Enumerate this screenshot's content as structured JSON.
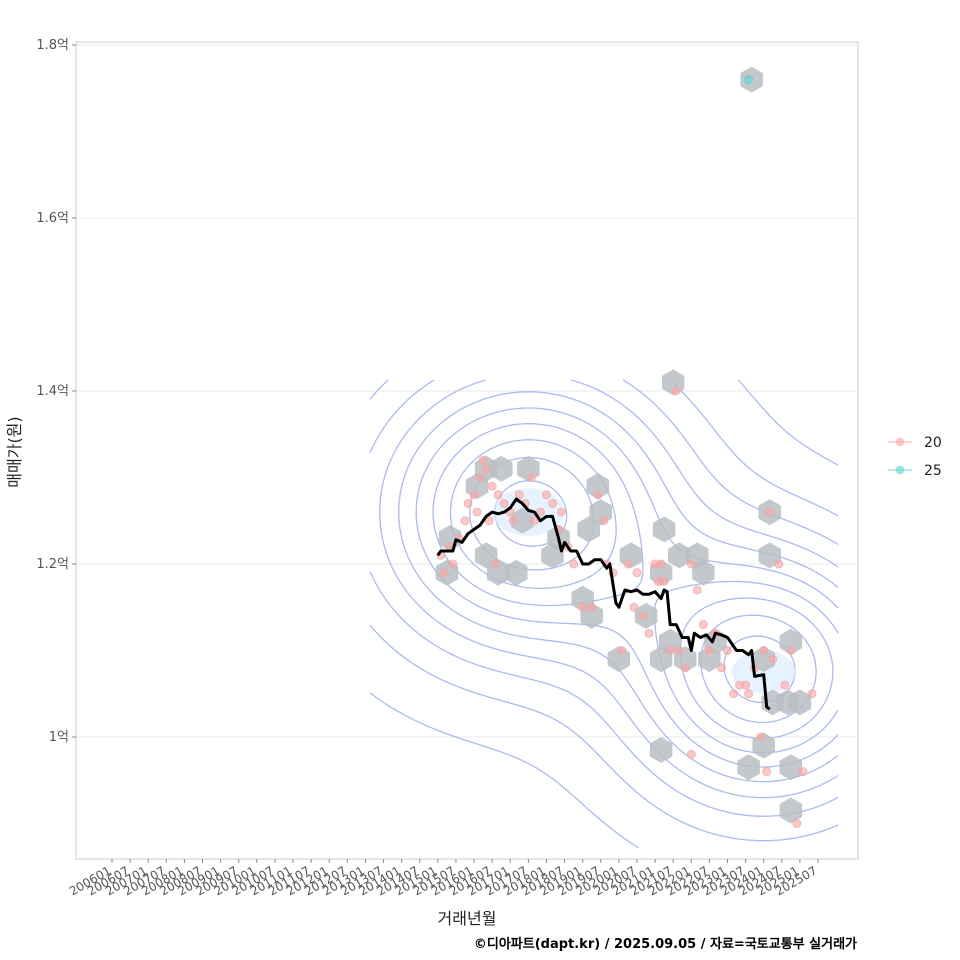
{
  "chart_data": {
    "type": "scatter",
    "title": "",
    "xlabel": "거래년월",
    "ylabel": "매매가(원)",
    "caption": "©디아파트(dapt.kr) / 2025.09.05 / 자료=국토교통부 실거래가",
    "x_ticks": [
      "200601",
      "200607",
      "200701",
      "200707",
      "200801",
      "200807",
      "200901",
      "200907",
      "201001",
      "201007",
      "201101",
      "201107",
      "201201",
      "201207",
      "201301",
      "201307",
      "201401",
      "201407",
      "201501",
      "201507",
      "201601",
      "201607",
      "201701",
      "201707",
      "201801",
      "201807",
      "201901",
      "201907",
      "202001",
      "202007",
      "202101",
      "202107",
      "202201",
      "202207",
      "202301",
      "202307",
      "202401",
      "202407",
      "202501",
      "202507"
    ],
    "y_ticks": [
      {
        "value": 1.0,
        "label": "1억"
      },
      {
        "value": 1.2,
        "label": "1.2억"
      },
      {
        "value": 1.4,
        "label": "1.4억"
      },
      {
        "value": 1.6,
        "label": "1.6억"
      },
      {
        "value": 1.8,
        "label": "1.8억"
      }
    ],
    "x_range": [
      "2006-01",
      "2025-12"
    ],
    "y_range_eok": [
      0.865,
      1.81
    ],
    "grid": true,
    "legend_position": "right",
    "colors": {
      "s20": "#f8a5a5",
      "s25": "#5fd3d3",
      "hex": "#b8bec4",
      "contour": "#aabbee",
      "trend": "#000000",
      "grid": "#e8e8e8",
      "panel_border": "#cccccc"
    },
    "series": [
      {
        "name": "20",
        "points": [
          [
            "2015-02",
            1.21
          ],
          [
            "2015-03",
            1.19
          ],
          [
            "2015-05",
            1.22
          ],
          [
            "2015-06",
            1.2
          ],
          [
            "2015-08",
            1.23
          ],
          [
            "2015-10",
            1.25
          ],
          [
            "2015-11",
            1.27
          ],
          [
            "2016-01",
            1.28
          ],
          [
            "2016-02",
            1.26
          ],
          [
            "2016-03",
            1.3
          ],
          [
            "2016-04",
            1.32
          ],
          [
            "2016-05",
            1.31
          ],
          [
            "2016-07",
            1.29
          ],
          [
            "2016-08",
            1.2
          ],
          [
            "2016-09",
            1.28
          ],
          [
            "2016-11",
            1.27
          ],
          [
            "2017-01",
            1.26
          ],
          [
            "2017-02",
            1.25
          ],
          [
            "2017-04",
            1.28
          ],
          [
            "2017-06",
            1.27
          ],
          [
            "2017-08",
            1.3
          ],
          [
            "2017-09",
            1.25
          ],
          [
            "2017-11",
            1.26
          ],
          [
            "2018-01",
            1.28
          ],
          [
            "2018-03",
            1.27
          ],
          [
            "2018-05",
            1.24
          ],
          [
            "2018-08",
            1.22
          ],
          [
            "2018-10",
            1.2
          ],
          [
            "2019-01",
            1.15
          ],
          [
            "2019-04",
            1.15
          ],
          [
            "2019-06",
            1.28
          ],
          [
            "2019-08",
            1.25
          ],
          [
            "2019-09",
            1.2
          ],
          [
            "2019-11",
            1.19
          ],
          [
            "2020-02",
            1.1
          ],
          [
            "2020-04",
            1.2
          ],
          [
            "2020-06",
            1.15
          ],
          [
            "2020-07",
            1.19
          ],
          [
            "2020-09",
            1.14
          ],
          [
            "2020-11",
            1.12
          ],
          [
            "2021-01",
            1.2
          ],
          [
            "2021-02",
            1.18
          ],
          [
            "2021-04",
            1.18
          ],
          [
            "2021-06",
            1.1
          ],
          [
            "2021-08",
            1.4
          ],
          [
            "2021-09",
            1.1
          ],
          [
            "2021-11",
            1.08
          ],
          [
            "2022-01",
            1.2
          ],
          [
            "2022-03",
            1.17
          ],
          [
            "2022-05",
            1.13
          ],
          [
            "2022-07",
            1.1
          ],
          [
            "2022-09",
            1.12
          ],
          [
            "2022-11",
            1.08
          ],
          [
            "2023-01",
            1.1
          ],
          [
            "2023-03",
            1.05
          ],
          [
            "2023-05",
            1.06
          ],
          [
            "2023-07",
            1.06
          ],
          [
            "2023-08",
            1.05
          ],
          [
            "2023-10",
            1.08
          ],
          [
            "2023-12",
            1.0
          ],
          [
            "2024-01",
            1.1
          ],
          [
            "2024-02",
            0.96
          ],
          [
            "2024-03",
            1.26
          ],
          [
            "2024-04",
            1.09
          ],
          [
            "2024-06",
            1.2
          ],
          [
            "2024-08",
            1.06
          ],
          [
            "2024-10",
            1.1
          ],
          [
            "2024-12",
            0.9
          ],
          [
            "2025-02",
            0.96
          ],
          [
            "2025-05",
            1.05
          ],
          [
            "2022-01",
            0.98
          ],
          [
            "2021-03",
            1.2
          ],
          [
            "2016-06",
            1.25
          ],
          [
            "2018-06",
            1.26
          ]
        ]
      },
      {
        "name": "25",
        "points": [
          [
            "2023-08",
            1.76
          ]
        ]
      }
    ],
    "trend_line": [
      [
        "2015-01",
        1.21
      ],
      [
        "2015-02",
        1.215
      ],
      [
        "2015-06",
        1.215
      ],
      [
        "2015-07",
        1.228
      ],
      [
        "2015-09",
        1.225
      ],
      [
        "2015-11",
        1.235
      ],
      [
        "2016-01",
        1.24
      ],
      [
        "2016-03",
        1.245
      ],
      [
        "2016-05",
        1.255
      ],
      [
        "2016-07",
        1.26
      ],
      [
        "2016-09",
        1.258
      ],
      [
        "2016-11",
        1.26
      ],
      [
        "2017-01",
        1.265
      ],
      [
        "2017-03",
        1.275
      ],
      [
        "2017-05",
        1.27
      ],
      [
        "2017-07",
        1.262
      ],
      [
        "2017-09",
        1.26
      ],
      [
        "2017-11",
        1.25
      ],
      [
        "2018-01",
        1.255
      ],
      [
        "2018-03",
        1.255
      ],
      [
        "2018-05",
        1.23
      ],
      [
        "2018-06",
        1.215
      ],
      [
        "2018-07",
        1.225
      ],
      [
        "2018-09",
        1.215
      ],
      [
        "2018-11",
        1.215
      ],
      [
        "2019-01",
        1.2
      ],
      [
        "2019-03",
        1.2
      ],
      [
        "2019-05",
        1.205
      ],
      [
        "2019-07",
        1.205
      ],
      [
        "2019-09",
        1.195
      ],
      [
        "2019-10",
        1.2
      ],
      [
        "2019-12",
        1.155
      ],
      [
        "2020-01",
        1.15
      ],
      [
        "2020-03",
        1.17
      ],
      [
        "2020-05",
        1.168
      ],
      [
        "2020-07",
        1.17
      ],
      [
        "2020-09",
        1.165
      ],
      [
        "2020-11",
        1.165
      ],
      [
        "2021-01",
        1.168
      ],
      [
        "2021-03",
        1.16
      ],
      [
        "2021-04",
        1.17
      ],
      [
        "2021-05",
        1.168
      ],
      [
        "2021-06",
        1.13
      ],
      [
        "2021-08",
        1.13
      ],
      [
        "2021-10",
        1.115
      ],
      [
        "2021-12",
        1.115
      ],
      [
        "2022-01",
        1.1
      ],
      [
        "2022-02",
        1.12
      ],
      [
        "2022-04",
        1.115
      ],
      [
        "2022-06",
        1.118
      ],
      [
        "2022-08",
        1.11
      ],
      [
        "2022-09",
        1.12
      ],
      [
        "2022-11",
        1.118
      ],
      [
        "2023-01",
        1.115
      ],
      [
        "2023-04",
        1.1
      ],
      [
        "2023-06",
        1.1
      ],
      [
        "2023-08",
        1.095
      ],
      [
        "2023-09",
        1.1
      ],
      [
        "2023-10",
        1.07
      ],
      [
        "2024-01",
        1.072
      ],
      [
        "2024-02",
        1.035
      ],
      [
        "2024-03",
        1.032
      ]
    ],
    "hexbins": [
      [
        "2015-04",
        1.19
      ],
      [
        "2015-05",
        1.23
      ],
      [
        "2016-02",
        1.29
      ],
      [
        "2016-05",
        1.21
      ],
      [
        "2016-05",
        1.31
      ],
      [
        "2016-09",
        1.19
      ],
      [
        "2016-10",
        1.31
      ],
      [
        "2017-03",
        1.19
      ],
      [
        "2017-05",
        1.25
      ],
      [
        "2017-07",
        1.31
      ],
      [
        "2018-03",
        1.21
      ],
      [
        "2018-05",
        1.23
      ],
      [
        "2019-01",
        1.16
      ],
      [
        "2019-04",
        1.14
      ],
      [
        "2019-06",
        1.29
      ],
      [
        "2019-07",
        1.26
      ],
      [
        "2019-03",
        1.24
      ],
      [
        "2020-01",
        1.09
      ],
      [
        "2020-05",
        1.21
      ],
      [
        "2020-10",
        1.14
      ],
      [
        "2021-03",
        1.09
      ],
      [
        "2021-03",
        1.19
      ],
      [
        "2021-04",
        1.24
      ],
      [
        "2021-06",
        1.11
      ],
      [
        "2021-07",
        1.41
      ],
      [
        "2021-09",
        1.21
      ],
      [
        "2021-11",
        1.09
      ],
      [
        "2022-03",
        1.21
      ],
      [
        "2022-05",
        1.19
      ],
      [
        "2022-07",
        1.09
      ],
      [
        "2022-09",
        1.11
      ],
      [
        "2023-08",
        0.965
      ],
      [
        "2023-09",
        1.76
      ],
      [
        "2024-01",
        0.99
      ],
      [
        "2024-03",
        1.26
      ],
      [
        "2024-03",
        1.21
      ],
      [
        "2024-04",
        1.04
      ],
      [
        "2024-09",
        1.04
      ],
      [
        "2024-10",
        0.915
      ],
      [
        "2024-10",
        0.965
      ],
      [
        "2024-10",
        1.11
      ],
      [
        "2025-01",
        1.04
      ],
      [
        "2021-03",
        0.985
      ],
      [
        "2024-01",
        1.09
      ]
    ],
    "density_peaks": [
      {
        "x": "2017-07",
        "y": 1.26,
        "spread_x_months": 34,
        "spread_y_eok": 0.11
      },
      {
        "x": "2024-01",
        "y": 1.075,
        "spread_x_months": 30,
        "spread_y_eok": 0.1
      }
    ]
  }
}
